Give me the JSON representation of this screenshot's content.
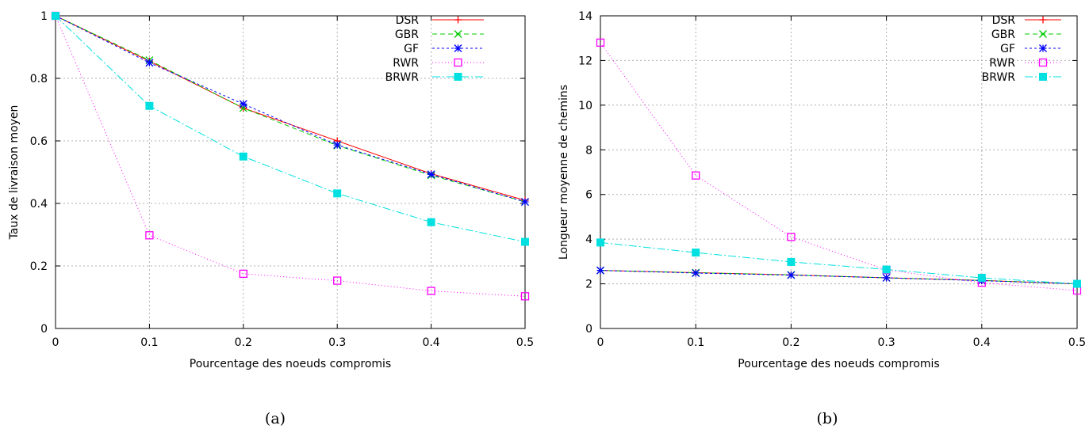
{
  "chart_data": [
    {
      "type": "line",
      "caption": "(a)",
      "xlabel": "Pourcentage des noeuds compromis",
      "ylabel": "Taux de livraison moyen",
      "xlim": [
        0,
        0.5
      ],
      "ylim": [
        0,
        1
      ],
      "x": [
        0,
        0.1,
        0.2,
        0.3,
        0.4,
        0.5
      ],
      "xticks": [
        "0",
        "0.1",
        "0.2",
        "0.3",
        "0.4",
        "0.5"
      ],
      "yticks": [
        {
          "v": 0,
          "label": "0"
        },
        {
          "v": 0.2,
          "label": "0.2"
        },
        {
          "v": 0.4,
          "label": "0.4"
        },
        {
          "v": 0.6,
          "label": "0.6"
        },
        {
          "v": 0.8,
          "label": "0.8"
        },
        {
          "v": 1,
          "label": "1"
        }
      ],
      "grid": true,
      "legend_position": "top-right",
      "series": [
        {
          "name": "DSR",
          "color": "#ff0000",
          "marker": "plus",
          "dash": "",
          "values": [
            1.0,
            0.855,
            0.705,
            0.6,
            0.495,
            0.41
          ]
        },
        {
          "name": "GBR",
          "color": "#00cc00",
          "marker": "cross",
          "dash": "6,4",
          "values": [
            1.0,
            0.858,
            0.705,
            0.585,
            0.49,
            0.405
          ]
        },
        {
          "name": "GF",
          "color": "#0000ff",
          "marker": "star",
          "dash": "3,3",
          "values": [
            1.0,
            0.85,
            0.718,
            0.587,
            0.493,
            0.405
          ]
        },
        {
          "name": "RWR",
          "color": "#ff00ff",
          "marker": "square-open",
          "dash": "1,3",
          "values": [
            1.0,
            0.298,
            0.175,
            0.153,
            0.12,
            0.103
          ]
        },
        {
          "name": "BRWR",
          "color": "#00e0e0",
          "marker": "square-filled",
          "dash": "10,3,2,3",
          "values": [
            1.0,
            0.712,
            0.55,
            0.432,
            0.34,
            0.277
          ]
        }
      ]
    },
    {
      "type": "line",
      "caption": "(b)",
      "xlabel": "Pourcentage des noeuds compromis",
      "ylabel": "Longueur moyenne de chemins",
      "xlim": [
        0,
        0.5
      ],
      "ylim": [
        0,
        14
      ],
      "x": [
        0,
        0.1,
        0.2,
        0.3,
        0.4,
        0.5
      ],
      "xticks": [
        "0",
        "0.1",
        "0.2",
        "0.3",
        "0.4",
        "0.5"
      ],
      "yticks": [
        {
          "v": 0,
          "label": "0"
        },
        {
          "v": 2,
          "label": "2"
        },
        {
          "v": 4,
          "label": "4"
        },
        {
          "v": 6,
          "label": "6"
        },
        {
          "v": 8,
          "label": "8"
        },
        {
          "v": 10,
          "label": "10"
        },
        {
          "v": 12,
          "label": "12"
        },
        {
          "v": 14,
          "label": "14"
        }
      ],
      "grid": true,
      "legend_position": "top-right",
      "series": [
        {
          "name": "DSR",
          "color": "#ff0000",
          "marker": "plus",
          "dash": "",
          "values": [
            2.6,
            2.5,
            2.4,
            2.27,
            2.15,
            2.0
          ]
        },
        {
          "name": "GBR",
          "color": "#00cc00",
          "marker": "cross",
          "dash": "6,4",
          "values": [
            2.6,
            2.5,
            2.4,
            2.27,
            2.15,
            2.0
          ]
        },
        {
          "name": "GF",
          "color": "#0000ff",
          "marker": "star",
          "dash": "3,3",
          "values": [
            2.6,
            2.48,
            2.39,
            2.27,
            2.14,
            2.0
          ]
        },
        {
          "name": "RWR",
          "color": "#ff00ff",
          "marker": "square-open",
          "dash": "1,3",
          "values": [
            12.8,
            6.85,
            4.1,
            2.62,
            2.05,
            1.7
          ]
        },
        {
          "name": "BRWR",
          "color": "#00e0e0",
          "marker": "square-filled",
          "dash": "10,3,2,3",
          "values": [
            3.85,
            3.4,
            2.98,
            2.64,
            2.27,
            2.0
          ]
        }
      ]
    }
  ]
}
